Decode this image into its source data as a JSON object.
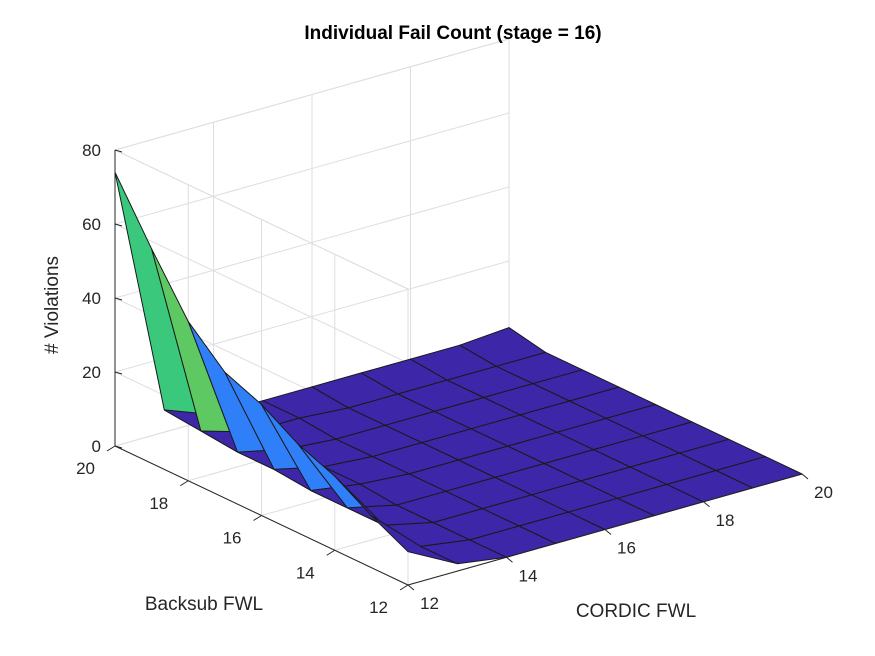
{
  "chart_data": {
    "type": "surface",
    "title": "Individual Fail Count (stage = 16)",
    "xlabel": "CORDIC FWL",
    "ylabel": "Backsub FWL",
    "zlabel": "# Violations",
    "xlim": [
      12,
      20
    ],
    "ylim": [
      12,
      20
    ],
    "zlim": [
      0,
      80
    ],
    "x_ticks": [
      12,
      14,
      16,
      18,
      20
    ],
    "y_ticks": [
      12,
      14,
      16,
      18,
      20
    ],
    "z_ticks": [
      0,
      20,
      40,
      60,
      80
    ],
    "grid": true,
    "colormap": "parula",
    "colors": [
      "#3e26a8",
      "#2f7ff8",
      "#3ac87c",
      "#5ec962",
      "#f9fb0e"
    ],
    "x": [
      12,
      13,
      14,
      15,
      16,
      17,
      18,
      19,
      20
    ],
    "y": [
      12,
      13,
      14,
      15,
      16,
      17,
      18,
      19,
      20
    ],
    "z": [
      [
        9,
        2,
        0,
        0,
        0,
        0,
        0,
        0,
        0
      ],
      [
        14,
        2,
        0,
        0,
        0,
        0,
        0,
        0,
        0
      ],
      [
        20,
        3,
        0,
        0,
        0,
        0,
        0,
        0,
        0
      ],
      [
        24,
        3,
        0,
        0,
        0,
        0,
        0,
        0,
        0
      ],
      [
        30,
        3,
        1,
        0,
        0,
        0,
        0,
        0,
        0
      ],
      [
        34,
        4,
        1,
        0,
        0,
        0,
        0,
        0,
        0
      ],
      [
        43,
        4,
        1,
        0,
        0,
        0,
        0,
        0,
        0
      ],
      [
        58,
        5,
        1,
        1,
        0,
        0,
        0,
        0,
        0
      ],
      [
        74,
        6,
        1,
        1,
        1,
        1,
        1,
        1,
        2
      ]
    ]
  }
}
